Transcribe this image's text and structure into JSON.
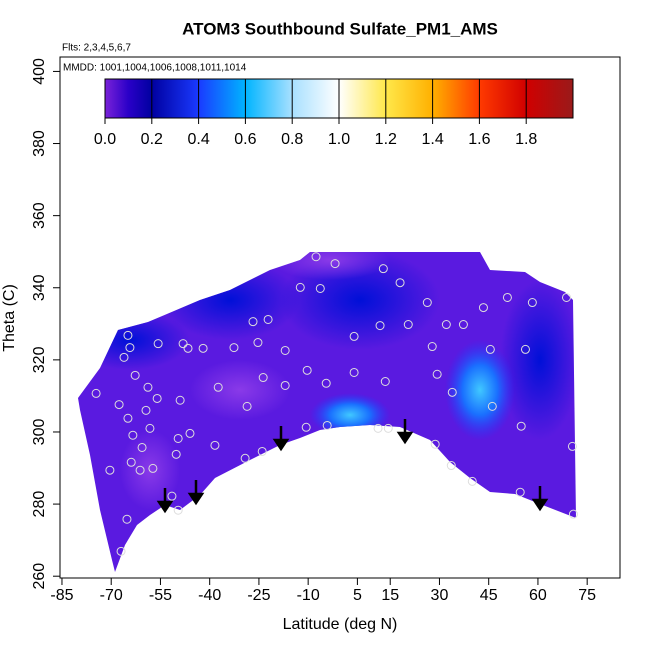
{
  "chart_data": {
    "type": "contour",
    "title": "ATOM3 Southbound Sulfate_PM1_AMS",
    "subtitle": "Flts: 2,3,4,5,6,7",
    "annotation": "MMDD: 1001,1004,1006,1008,1011,1014",
    "x_label": "Latitude (deg N)",
    "y_label": "Theta (C)",
    "xlim": [
      -85.6,
      85
    ],
    "ylim": [
      259.5,
      404
    ],
    "xticks": [
      -85,
      -70,
      -55,
      -40,
      -25,
      -10,
      5,
      15,
      30,
      45,
      60,
      75
    ],
    "yticks": [
      260,
      280,
      300,
      320,
      340,
      360,
      380,
      400
    ],
    "clim": [
      0,
      2
    ],
    "cticks": [
      {
        "value": 0,
        "label": "0.0"
      },
      0.2,
      0.4,
      0.6,
      0.8,
      {
        "value": 1,
        "label": "1.0"
      },
      1.2,
      1.4,
      1.6,
      1.8
    ],
    "colorscale": [
      [
        0,
        "#7a22d8"
      ],
      [
        0.1,
        "#2a00c8"
      ],
      [
        0.2,
        "#0000a0"
      ],
      [
        0.4,
        "#1a3aff"
      ],
      [
        0.6,
        "#00b4ff"
      ],
      [
        0.8,
        "#a8e0ff"
      ],
      [
        1.0,
        "#ffffff"
      ],
      [
        1.2,
        "#ffe84a"
      ],
      [
        1.4,
        "#ffb000"
      ],
      [
        1.6,
        "#ff3a00"
      ],
      [
        1.8,
        "#d00000"
      ],
      [
        2.0,
        "#9a1a1a"
      ]
    ],
    "point_color": "#dddddd",
    "x": [
      -74.6,
      -64.9,
      -64.3,
      -66.1,
      -62.7,
      -58.8,
      -67.6,
      -64.9,
      -59.4,
      -56.0,
      -58.2,
      -63.4,
      -60.6,
      -63.9,
      -70.4,
      -61.2,
      -57.3,
      -65.2,
      -67.0,
      -51.5,
      -49.6,
      -50.2,
      -49.6,
      -49.0,
      -46.0,
      -55.7,
      -48.1,
      -46.6,
      -42.0,
      -37.4,
      -38.4,
      -32.6,
      -28.6,
      -26.8,
      -22.2,
      -25.3,
      -23.7,
      -29.2,
      -24.0,
      -17.0,
      -17.0,
      -12.4,
      -6.3,
      -1.8,
      -7.6,
      -10.3,
      -4.5,
      4.0,
      4.0,
      12.9,
      11.9,
      18.0,
      20.5,
      13.5,
      -10.6,
      -4.2,
      11.3,
      14.4,
      26.3,
      27.8,
      32.1,
      29.3,
      33.9,
      28.7,
      33.6,
      37.3,
      43.4,
      45.5,
      46.1,
      50.7,
      56.2,
      58.3,
      54.9,
      54.6,
      40.0,
      68.7,
      70.5,
      70.8
    ],
    "y": [
      310.7,
      326.8,
      323.4,
      320.7,
      315.7,
      312.4,
      307.6,
      303.8,
      306.0,
      309.3,
      301.0,
      299.1,
      295.7,
      291.6,
      289.4,
      289.4,
      289.9,
      275.8,
      266.9,
      282.2,
      278.3,
      293.8,
      298.2,
      308.8,
      299.6,
      324.5,
      324.5,
      323.2,
      323.2,
      312.4,
      296.3,
      323.4,
      307.1,
      330.6,
      331.2,
      324.8,
      315.1,
      292.7,
      294.6,
      312.9,
      322.6,
      340.1,
      339.8,
      346.7,
      348.6,
      317.1,
      313.5,
      316.5,
      326.5,
      345.3,
      329.5,
      341.4,
      329.8,
      314.0,
      301.3,
      301.8,
      301.0,
      301.0,
      335.9,
      323.7,
      329.8,
      316.0,
      311.0,
      296.6,
      290.7,
      329.8,
      334.5,
      322.9,
      307.1,
      337.3,
      322.9,
      335.9,
      301.6,
      283.3,
      286.3,
      337.3,
      296.0,
      277.2
    ]
  }
}
